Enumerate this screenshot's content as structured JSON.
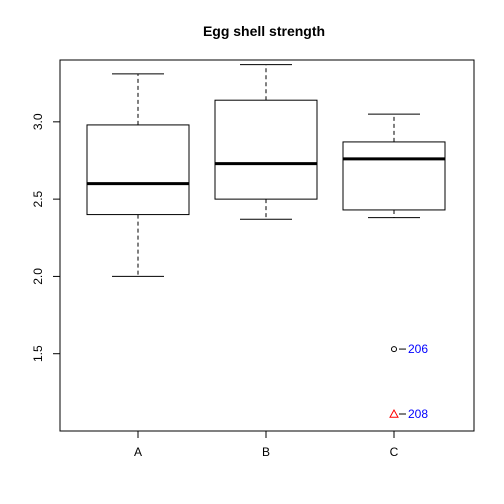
{
  "chart_data": {
    "type": "boxplot",
    "title": "Egg shell strength",
    "xlabel": "",
    "ylabel": "",
    "categories": [
      "A",
      "B",
      "C"
    ],
    "ylim": [
      1.0,
      3.4
    ],
    "yticks": [
      1.5,
      2.0,
      2.5,
      3.0
    ],
    "ytick_labels": [
      "1.5",
      "2.0",
      "2.5",
      "3.0"
    ],
    "grid": false,
    "boxes": [
      {
        "category": "A",
        "whisker_low": 2.0,
        "q1": 2.4,
        "median": 2.6,
        "q3": 2.98,
        "whisker_high": 3.31
      },
      {
        "category": "B",
        "whisker_low": 2.37,
        "q1": 2.5,
        "median": 2.73,
        "q3": 3.14,
        "whisker_high": 3.37
      },
      {
        "category": "C",
        "whisker_low": 2.38,
        "q1": 2.43,
        "median": 2.76,
        "q3": 2.87,
        "whisker_high": 3.05
      }
    ],
    "outliers": [
      {
        "category": "C",
        "value": 1.53,
        "label": "206",
        "marker": "circle",
        "color": "#000000",
        "label_color": "#0000ff"
      },
      {
        "category": "C",
        "value": 1.11,
        "label": "208",
        "marker": "triangle",
        "color": "#ff0000",
        "label_color": "#0000ff"
      }
    ]
  }
}
